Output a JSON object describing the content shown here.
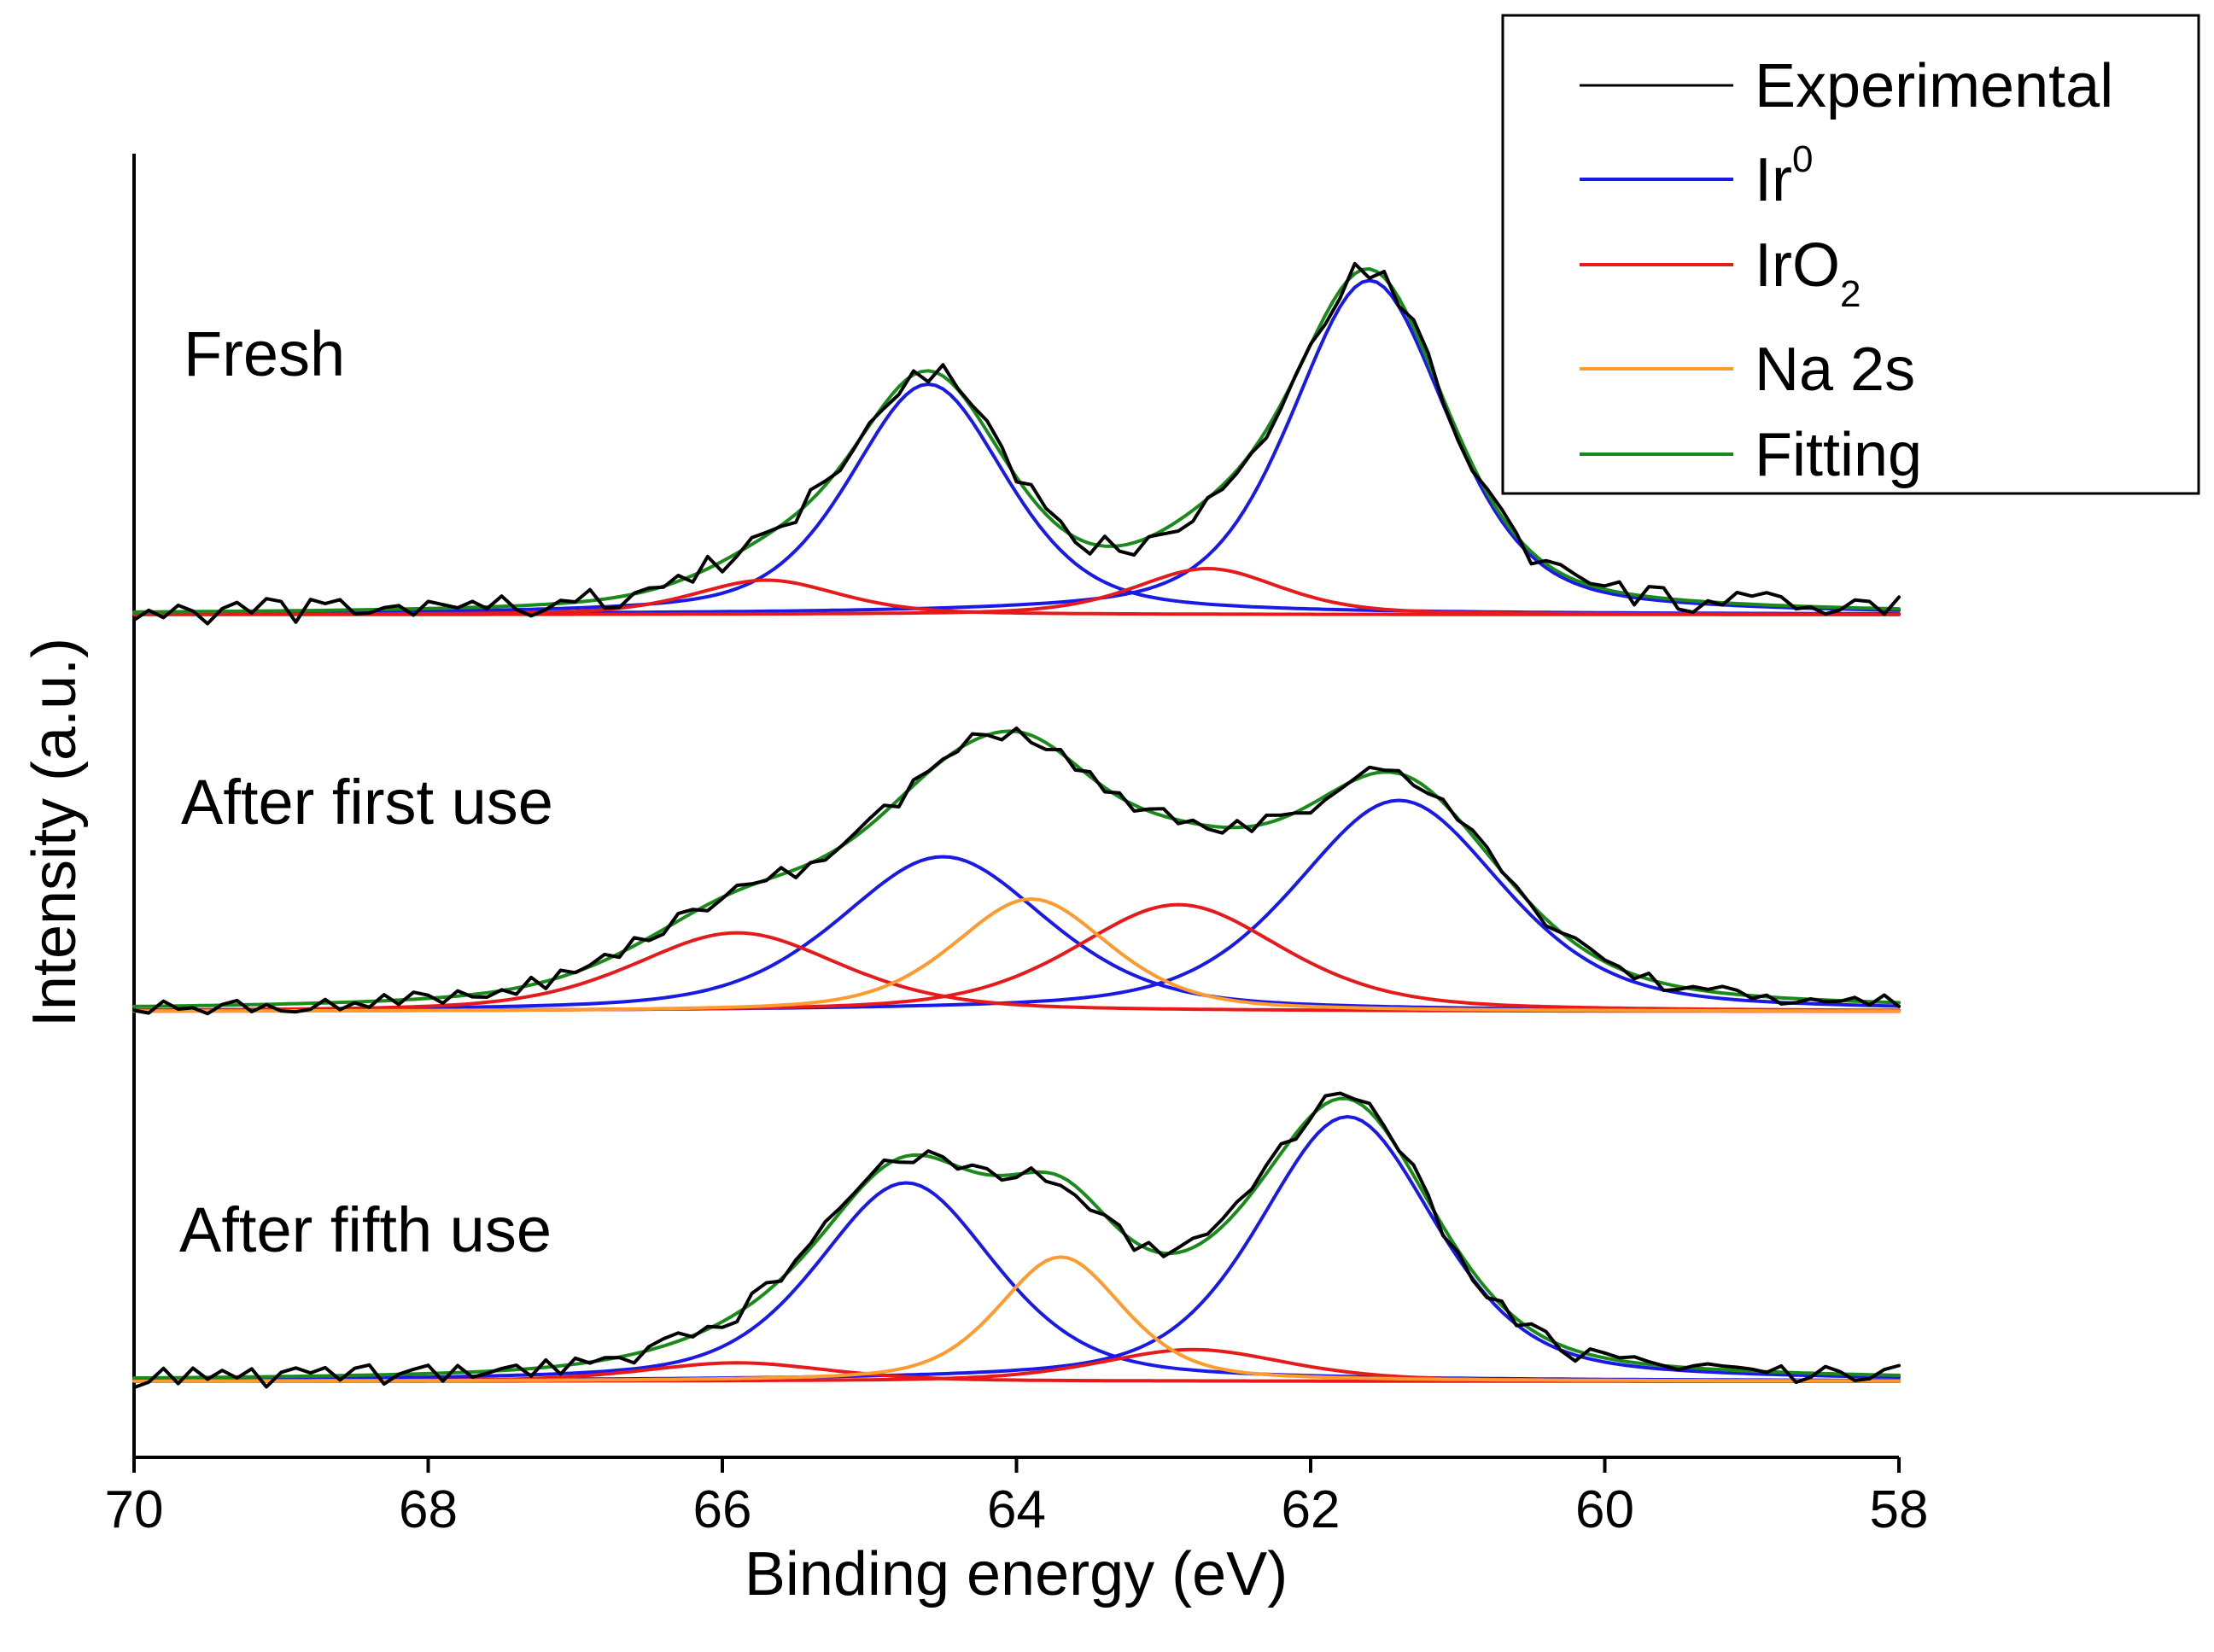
{
  "chart_data": {
    "type": "line",
    "title": "",
    "xlabel": "Binding energy (eV)",
    "ylabel": "Intensity (a.u.)",
    "xlim": [
      70,
      58
    ],
    "x_reversed": true,
    "xticks": [
      70,
      68,
      66,
      64,
      62,
      60,
      58
    ],
    "y_ticks_shown": false,
    "grid": false,
    "legend_position": "top-right",
    "legend": [
      {
        "key": "experimental",
        "label": "Experimental",
        "color": "#000000"
      },
      {
        "key": "ir0",
        "label": "Ir",
        "sup": "0",
        "color": "#1a1ae6"
      },
      {
        "key": "iro2",
        "label": "IrO",
        "sub": "2",
        "color": "#e61a1a"
      },
      {
        "key": "na2s",
        "label": "Na 2s",
        "color": "#ff9a2e"
      },
      {
        "key": "fitting",
        "label": "Fitting",
        "color": "#1a8a1a"
      }
    ],
    "panels": [
      {
        "label": "Fresh",
        "baseline": 0.0,
        "components": [
          {
            "series": "ir0",
            "center": 64.6,
            "height": 1.0,
            "width": 0.75
          },
          {
            "series": "ir0",
            "center": 61.6,
            "height": 1.45,
            "width": 0.75
          },
          {
            "series": "iro2",
            "center": 65.7,
            "height": 0.15,
            "width": 0.7
          },
          {
            "series": "iro2",
            "center": 62.7,
            "height": 0.2,
            "width": 0.7
          }
        ],
        "noise": 0.055
      },
      {
        "label": "After first use",
        "baseline": 0.0,
        "components": [
          {
            "series": "ir0",
            "center": 64.5,
            "height": 0.55,
            "width": 1.0
          },
          {
            "series": "ir0",
            "center": 61.4,
            "height": 0.75,
            "width": 1.0
          },
          {
            "series": "iro2",
            "center": 65.9,
            "height": 0.28,
            "width": 1.0
          },
          {
            "series": "iro2",
            "center": 62.9,
            "height": 0.38,
            "width": 1.0
          },
          {
            "series": "na2s",
            "center": 63.9,
            "height": 0.4,
            "width": 0.75
          }
        ],
        "noise": 0.03
      },
      {
        "label": "After fifth use",
        "baseline": 0.0,
        "components": [
          {
            "series": "ir0",
            "center": 64.75,
            "height": 0.75,
            "width": 0.85
          },
          {
            "series": "ir0",
            "center": 61.75,
            "height": 1.0,
            "width": 0.85
          },
          {
            "series": "iro2",
            "center": 65.9,
            "height": 0.07,
            "width": 0.9
          },
          {
            "series": "iro2",
            "center": 62.8,
            "height": 0.12,
            "width": 0.9
          },
          {
            "series": "na2s",
            "center": 63.7,
            "height": 0.47,
            "width": 0.6
          }
        ],
        "noise": 0.04
      }
    ]
  }
}
